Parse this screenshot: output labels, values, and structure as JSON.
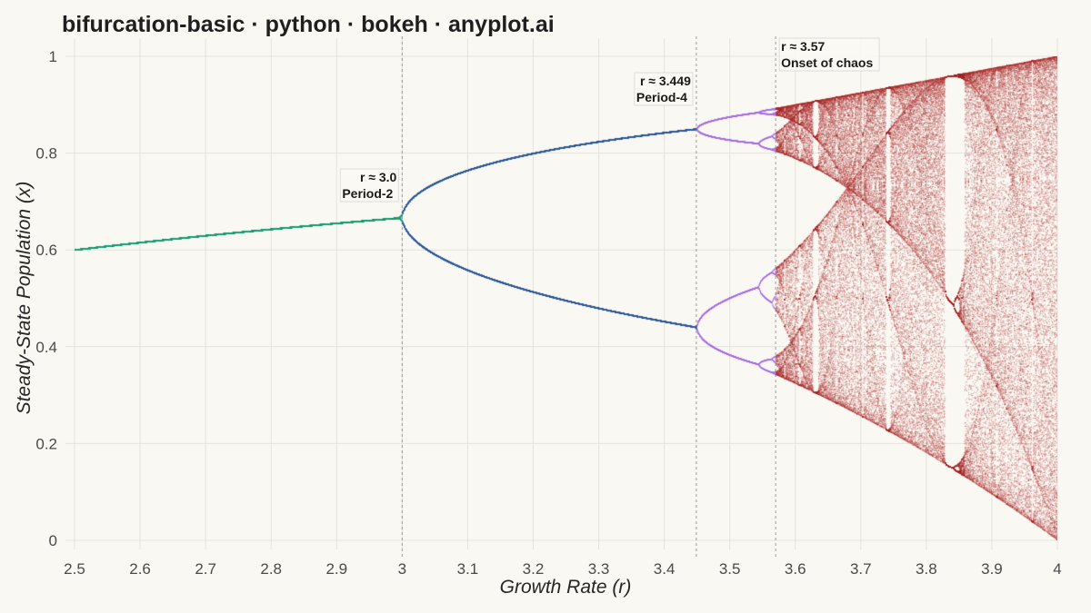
{
  "chart_data": {
    "type": "scatter",
    "title": "bifurcation-basic · python · bokeh · anyplot.ai",
    "xlabel": "Growth Rate (r)",
    "ylabel": "Steady-State Population (x)",
    "xlim": [
      2.5,
      4.0
    ],
    "ylim": [
      0,
      1
    ],
    "x_ticks": [
      "2.5",
      "2.6",
      "2.7",
      "2.8",
      "2.9",
      "3",
      "3.1",
      "3.2",
      "3.3",
      "3.4",
      "3.5",
      "3.6",
      "3.7",
      "3.8",
      "3.9",
      "4"
    ],
    "y_ticks": [
      "0",
      "0.2",
      "0.4",
      "0.6",
      "0.8",
      "1"
    ],
    "grid": true,
    "legend": "none",
    "model": "logistic map x(n+1) = r · x(n) · (1 − x(n))",
    "series": [
      {
        "r_range": [
          2.5,
          3.0
        ],
        "color": "#1a9e77"
      },
      {
        "r_range": [
          3.0,
          3.449
        ],
        "color": "#2e5c9a"
      },
      {
        "r_range": [
          3.449,
          3.57
        ],
        "color": "#a66ee8"
      },
      {
        "r_range": [
          3.57,
          4.0
        ],
        "color": "#a82a2a"
      }
    ],
    "annotations": [
      {
        "r": 3.0,
        "line1": "r ≈ 3.0",
        "line2": "Period-2"
      },
      {
        "r": 3.449,
        "line1": "r ≈ 3.449",
        "line2": "Period-4"
      },
      {
        "r": 3.57,
        "line1": "r ≈ 3.57",
        "line2": "Onset of chaos"
      }
    ]
  }
}
